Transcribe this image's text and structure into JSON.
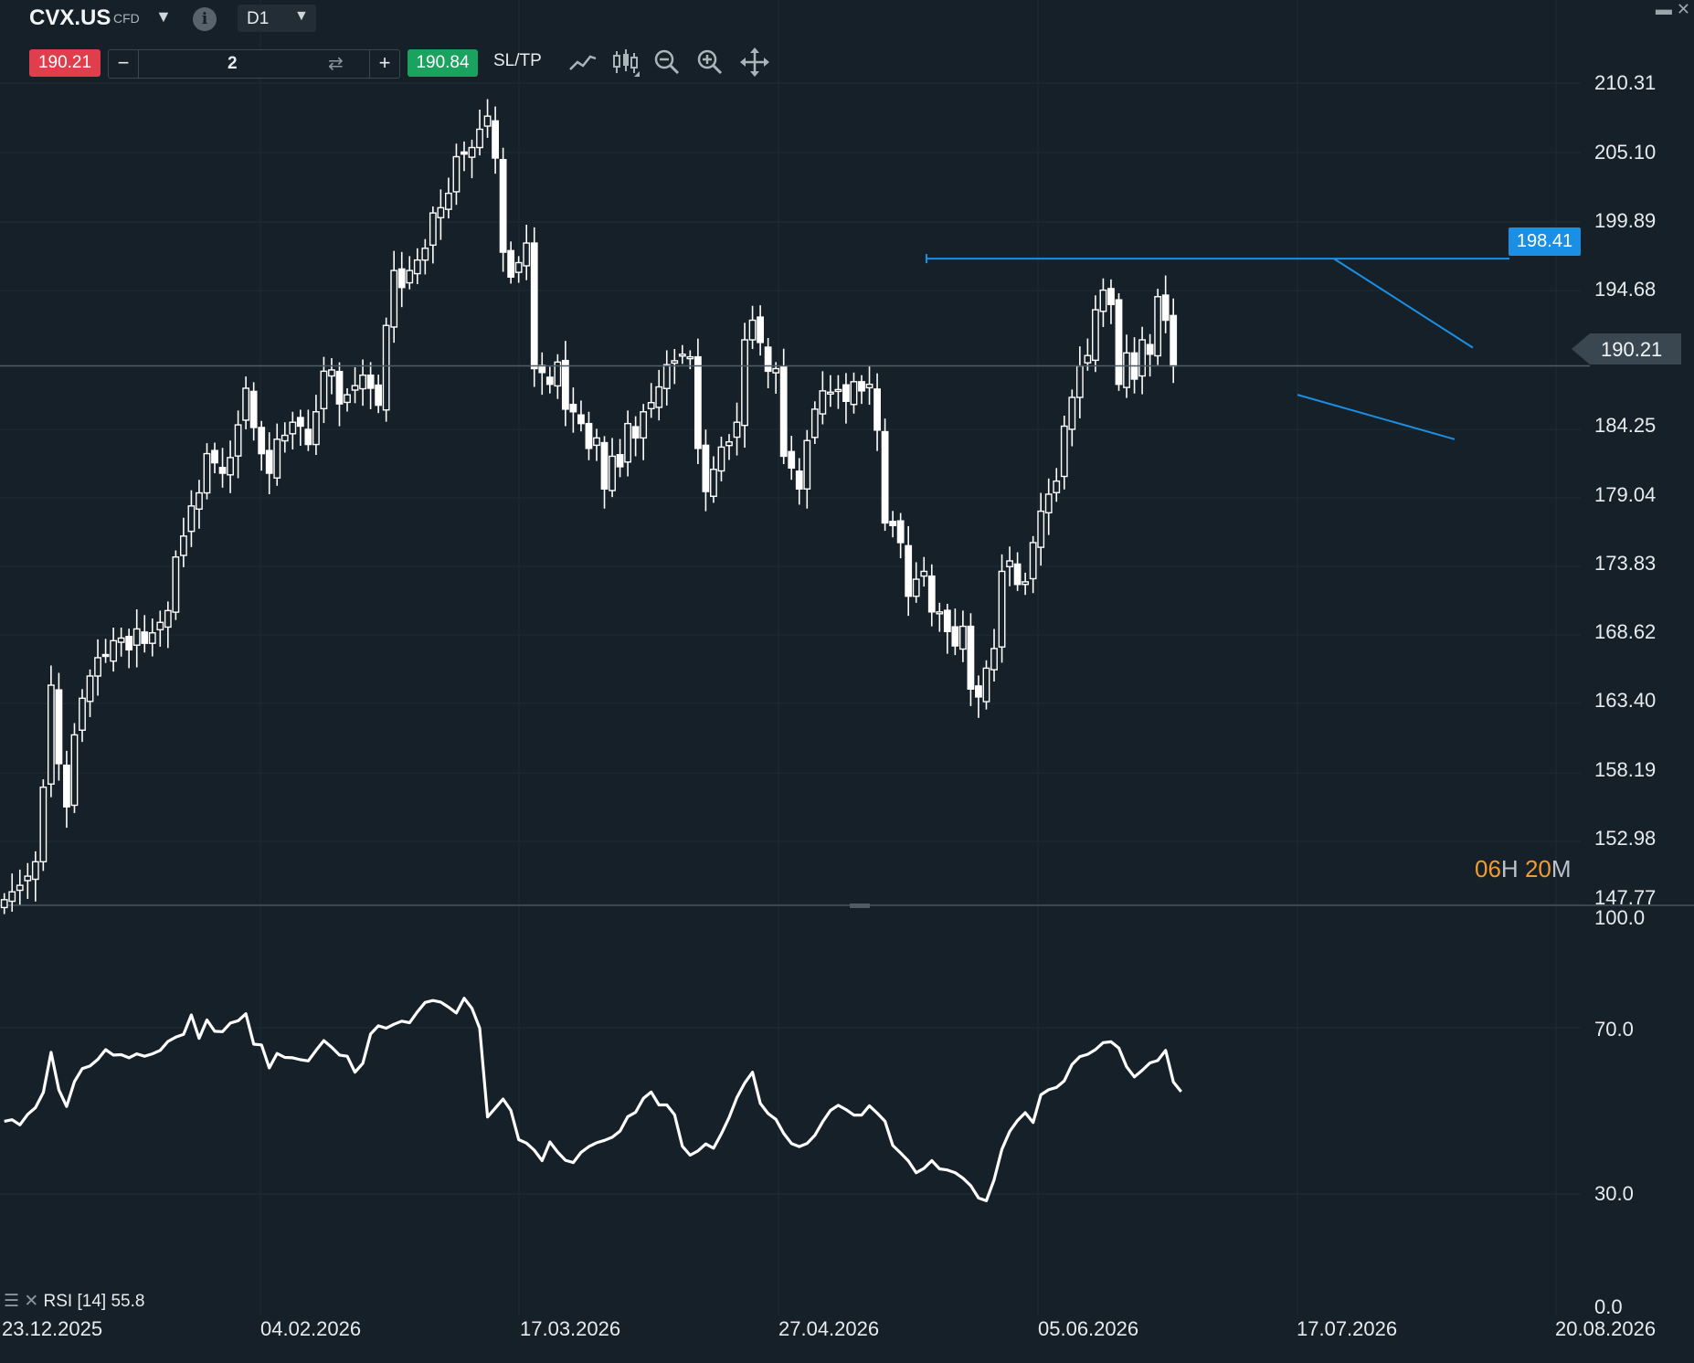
{
  "header": {
    "symbol": "CVX.US",
    "instrument_type": "CFD",
    "timeframe": "D1",
    "sell_price": "190.21",
    "buy_price": "190.84",
    "volume": "2",
    "sltp_label": "SL/TP",
    "vol_minus": "−",
    "vol_plus": "+",
    "icons": [
      "chevron-down-icon",
      "info-icon",
      "line-chart-icon",
      "candlestick-icon",
      "zoom-out-icon",
      "zoom-in-icon",
      "move-icon",
      "minimize-icon",
      "close-icon"
    ]
  },
  "price_axis": {
    "ticks": [
      "210.31",
      "205.10",
      "199.89",
      "194.68",
      "190.21",
      "184.25",
      "179.04",
      "173.83",
      "168.62",
      "163.40",
      "158.19",
      "152.98",
      "147.77"
    ],
    "current_price": "190.21",
    "alert_price": "198.41"
  },
  "time_axis": {
    "ticks": [
      "23.12.2025",
      "04.02.2026",
      "17.03.2026",
      "27.04.2026",
      "05.06.2026",
      "17.07.2026",
      "20.08.2026"
    ]
  },
  "candle_timer": {
    "hours": "06",
    "h_unit": "H",
    "minutes": "20",
    "m_unit": "M"
  },
  "rsi_panel": {
    "legend": "RSI [14] 55.8",
    "ticks": [
      "100.0",
      "70.0",
      "30.0",
      "0.0"
    ]
  },
  "colors": {
    "background": "#162028",
    "candle": "#ffffff",
    "trendline": "#1a8fe3",
    "sell": "#e03e4c",
    "buy": "#1aa35e",
    "timer_digits": "#f49b2b"
  },
  "chart_data": [
    {
      "type": "candlestick",
      "title": "CVX.US D1",
      "ylim": [
        147.77,
        212.5
      ],
      "y_ticks": [
        210.31,
        205.1,
        199.89,
        194.68,
        184.25,
        179.04,
        173.83,
        168.62,
        163.4,
        158.19,
        152.98,
        147.77
      ],
      "x_ticks": [
        "23.12.2025",
        "04.02.2026",
        "17.03.2026",
        "27.04.2026",
        "05.06.2026",
        "17.07.2026",
        "20.08.2026"
      ],
      "grid": true,
      "close": [
        149.4,
        150.0,
        150.5,
        151.2,
        152.3,
        158.0,
        165.8,
        159.8,
        156.5,
        162.0,
        164.8,
        166.5,
        167.9,
        168.0,
        169.2,
        169.4,
        168.5,
        170.1,
        169.0,
        169.8,
        170.6,
        171.5,
        175.6,
        177.2,
        179.5,
        180.5,
        183.5,
        182.8,
        182.0,
        183.2,
        185.7,
        188.5,
        185.5,
        183.5,
        182.0,
        184.6,
        184.9,
        185.9,
        185.6,
        184.2,
        186.7,
        189.8,
        189.9,
        187.3,
        188.0,
        188.7,
        189.5,
        188.5,
        187.2,
        193.3,
        197.5,
        196.2,
        197.5,
        198.3,
        199.2,
        201.9,
        202.3,
        203.4,
        206.2,
        206.4,
        206.9,
        208.3,
        209.3,
        206.1,
        198.9,
        197.0,
        198.1,
        199.6,
        190.0,
        189.7,
        188.8,
        190.5,
        186.9,
        186.7,
        185.8,
        183.9,
        184.7,
        180.8,
        183.3,
        182.5,
        185.8,
        184.7,
        186.7,
        187.4,
        188.6,
        190.3,
        190.6,
        191.1,
        190.9,
        183.9,
        180.6,
        182.3,
        184.0,
        184.4,
        185.9,
        192.2,
        193.7,
        192.0,
        189.8,
        190.0,
        183.3,
        182.4,
        180.8,
        184.5,
        186.9,
        188.3,
        188.2,
        188.4,
        187.5,
        189.0,
        188.3,
        188.8,
        185.3,
        178.2,
        178.0,
        176.7,
        172.6,
        173.9,
        174.5,
        171.4,
        171.4,
        169.9,
        168.8,
        170.3,
        165.5,
        164.9,
        167.1,
        168.6,
        174.5,
        175.3,
        173.5,
        173.7,
        176.7,
        179.1,
        180.4,
        181.4,
        185.6,
        187.8,
        190.2,
        191.0,
        194.5,
        196.0,
        194.9,
        188.8,
        191.2,
        189.2,
        192.2,
        191.1,
        195.5,
        193.7,
        190.2
      ],
      "rsi": [
        48.2,
        48.6,
        47.3,
        50.0,
        51.7,
        55.6,
        65.9,
        56.3,
        52.0,
        58.4,
        61.7,
        62.4,
        64.1,
        66.6,
        65.2,
        65.3,
        64.5,
        65.5,
        64.9,
        65.5,
        66.4,
        68.7,
        69.8,
        70.5,
        75.5,
        69.5,
        74.2,
        71.3,
        71.2,
        73.4,
        74.0,
        75.8,
        68.0,
        67.8,
        61.9,
        65.6,
        64.6,
        64.5,
        64.0,
        63.7,
        66.4,
        68.9,
        67.2,
        65.2,
        64.9,
        60.8,
        63.1,
        70.6,
        72.7,
        72.1,
        73.1,
        73.9,
        73.5,
        76.3,
        78.7,
        79.2,
        78.8,
        77.5,
        76.0,
        79.8,
        77.2,
        72.1,
        49.3,
        51.6,
        53.9,
        51.0,
        43.5,
        42.6,
        40.8,
        38.1,
        42.9,
        40.3,
        38.2,
        37.6,
        40.2,
        41.7,
        42.7,
        43.3,
        44.1,
        45.7,
        49.4,
        50.5,
        54.1,
        55.7,
        52.4,
        52.4,
        49.9,
        41.8,
        39.5,
        40.6,
        42.4,
        41.3,
        45.0,
        49.2,
        54.3,
        58.0,
        60.8,
        52.8,
        50.2,
        48.7,
        45.1,
        42.5,
        41.7,
        42.5,
        44.6,
        48.1,
        51.0,
        52.3,
        51.2,
        49.8,
        49.8,
        52.2,
        50.3,
        48.2,
        42.0,
        40.1,
        38.0,
        35.0,
        36.1,
        38.1,
        36.0,
        35.7,
        35.0,
        33.6,
        31.7,
        28.5,
        27.8,
        33.2,
        41.0,
        45.6,
        48.4,
        50.4,
        47.9,
        55.0,
        56.3,
        56.9,
        58.6,
        62.8,
        64.8,
        65.4,
        66.6,
        68.4,
        68.6,
        67.0,
        62.2,
        59.6,
        61.3,
        63.2,
        63.8,
        66.4,
        58.3,
        55.8
      ],
      "annotations": [
        {
          "kind": "horizontal-line",
          "price": 198.41,
          "label": "198.41"
        },
        {
          "kind": "current-price-line",
          "price": 190.21,
          "label": "190.21"
        },
        {
          "kind": "trendline-upper",
          "from_price": 198.4,
          "to_price": 191.6
        },
        {
          "kind": "trendline-lower",
          "from_price": 188.0,
          "to_price": 184.6
        }
      ]
    },
    {
      "type": "line",
      "title": "RSI [14]",
      "value_label": "55.8",
      "ylim": [
        0,
        100
      ],
      "y_ticks": [
        100,
        70,
        30,
        0
      ]
    }
  ]
}
